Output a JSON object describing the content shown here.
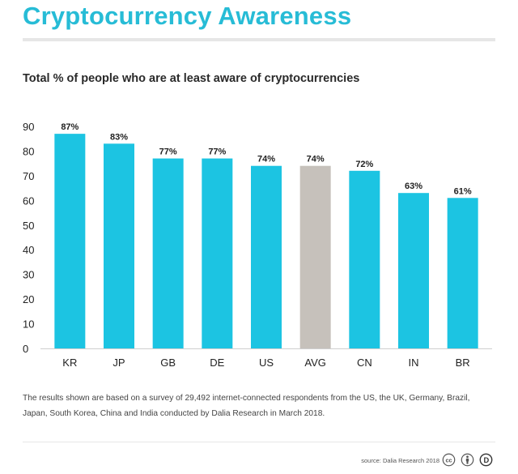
{
  "header": {
    "title": "Cryptocurrency Awareness",
    "subtitle": "Total % of people who are at least aware of cryptocurrencies"
  },
  "chart_data": {
    "type": "bar",
    "title": "Total % of people who are at least aware of cryptocurrencies",
    "xlabel": "",
    "ylabel": "",
    "categories": [
      "KR",
      "JP",
      "GB",
      "DE",
      "US",
      "AVG",
      "CN",
      "IN",
      "BR"
    ],
    "values": [
      87,
      83,
      77,
      77,
      74,
      74,
      72,
      63,
      61
    ],
    "data_labels": [
      "87%",
      "83%",
      "77%",
      "77%",
      "74%",
      "74%",
      "72%",
      "63%",
      "61%"
    ],
    "highlight_category": "AVG",
    "yticks": [
      0,
      10,
      20,
      30,
      40,
      50,
      60,
      70,
      80,
      90
    ],
    "ylim": [
      0,
      90
    ],
    "grid": false,
    "legend": "none"
  },
  "colors": {
    "title": "#27bcd6",
    "bar": "#1cc4e2",
    "bar_highlight": "#c6c1bb",
    "text": "#222222"
  },
  "footer": {
    "note": "The results shown are based on a survey of 29,492 internet-connected respondents from the US, the UK, Germany, Brazil, Japan, South Korea, China and India conducted by Dalia Research in March 2018.",
    "source": "source: Dalia Research 2018",
    "license_icons": [
      "creative-commons-icon",
      "attribution-icon",
      "dalia-logo-icon"
    ]
  }
}
